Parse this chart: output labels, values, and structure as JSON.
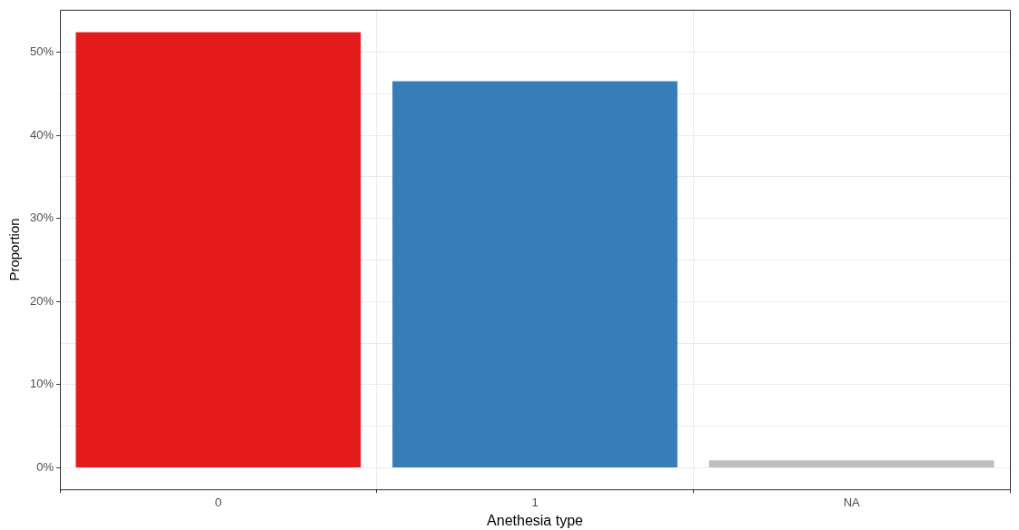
{
  "chart_data": {
    "type": "bar",
    "xlabel": "Anethesia type",
    "ylabel": "Proportion",
    "categories": [
      "0",
      "1",
      "NA"
    ],
    "values": [
      52.4,
      46.5,
      0.9
    ],
    "colors": [
      "#e41a1c",
      "#377eb8",
      "#bebebe"
    ],
    "ylim": [
      -2.6,
      55.1
    ],
    "yticks": [
      {
        "value": 0,
        "label": "0%"
      },
      {
        "value": 5,
        "label": null
      },
      {
        "value": 10,
        "label": "10%"
      },
      {
        "value": 15,
        "label": null
      },
      {
        "value": 20,
        "label": "20%"
      },
      {
        "value": 25,
        "label": null
      },
      {
        "value": 30,
        "label": "30%"
      },
      {
        "value": 35,
        "label": null
      },
      {
        "value": 40,
        "label": "40%"
      },
      {
        "value": 45,
        "label": null
      },
      {
        "value": 50,
        "label": "50%"
      }
    ],
    "grid": true,
    "legend": false
  }
}
